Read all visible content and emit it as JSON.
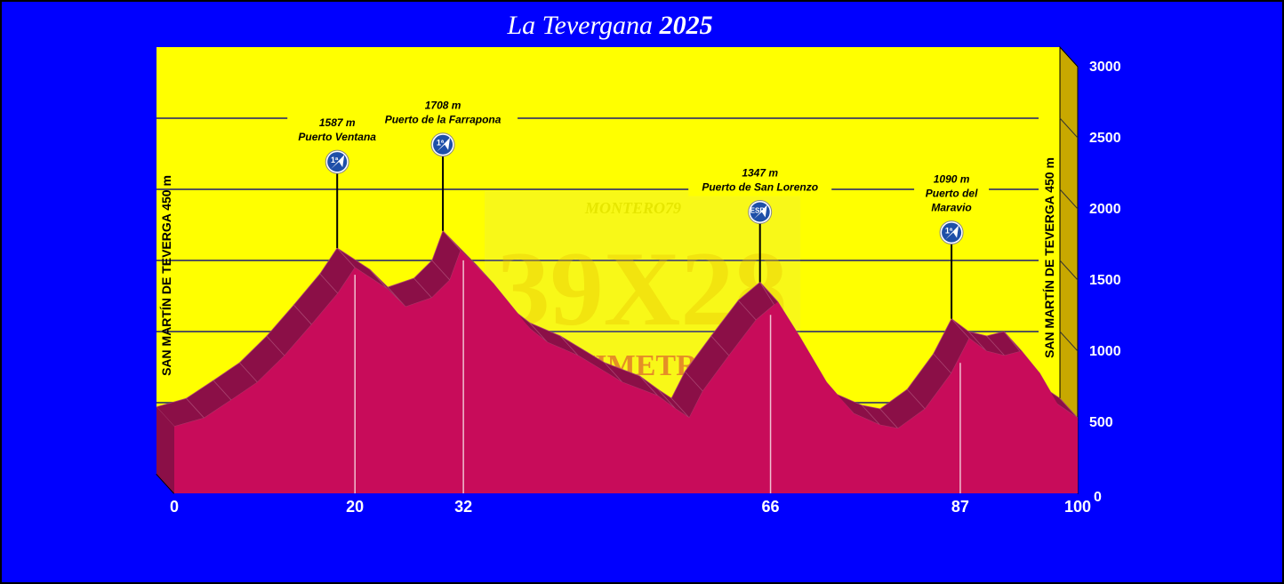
{
  "chart_data": {
    "type": "area",
    "title": "La Tevergana",
    "title_year": "2025",
    "xlabel": "",
    "ylabel": "",
    "xlim": [
      0,
      100
    ],
    "ylim": [
      0,
      3000
    ],
    "y_ticks": [
      0,
      500,
      1000,
      1500,
      2000,
      2500,
      3000
    ],
    "x_ticks": [
      0,
      20,
      32,
      66,
      87,
      100
    ],
    "grid": true,
    "start_label": "SAN MARTÍN DE TEVERGA 450 m",
    "finish_label": "SAN MARTÍN DE TEVERGA 450 m",
    "profile": [
      [
        0,
        470
      ],
      [
        3.3,
        530
      ],
      [
        6.3,
        656
      ],
      [
        9.2,
        781
      ],
      [
        12.2,
        968
      ],
      [
        15.2,
        1187
      ],
      [
        18.1,
        1406
      ],
      [
        20,
        1587
      ],
      [
        23.6,
        1437
      ],
      [
        25.6,
        1312
      ],
      [
        28.5,
        1375
      ],
      [
        30.5,
        1500
      ],
      [
        31.7,
        1708
      ],
      [
        35.4,
        1469
      ],
      [
        39.4,
        1156
      ],
      [
        41.3,
        1062
      ],
      [
        44.7,
        969
      ],
      [
        49.6,
        781
      ],
      [
        53.5,
        687
      ],
      [
        55.5,
        594
      ],
      [
        57,
        531
      ],
      [
        58.5,
        719
      ],
      [
        61.4,
        969
      ],
      [
        64.4,
        1219
      ],
      [
        66.8,
        1347
      ],
      [
        69.3,
        1094
      ],
      [
        72.2,
        781
      ],
      [
        75.2,
        562
      ],
      [
        78.1,
        481
      ],
      [
        80.1,
        456
      ],
      [
        83.1,
        594
      ],
      [
        86,
        844
      ],
      [
        88,
        1090
      ],
      [
        89.9,
        1000
      ],
      [
        91.9,
        969
      ],
      [
        93.8,
        1000
      ],
      [
        95.8,
        844
      ],
      [
        97.8,
        625
      ],
      [
        100,
        530
      ]
    ],
    "climbs": [
      {
        "km": 20,
        "elevation_label": "1587 m",
        "name": [
          "Puerto Ventana"
        ],
        "category": "1ª"
      },
      {
        "km": 31.7,
        "elevation_label": "1708 m",
        "name": [
          "Puerto de la Farrapona"
        ],
        "category": "1ª"
      },
      {
        "km": 66.8,
        "elevation_label": "1347 m",
        "name": [
          "Puerto de San Lorenzo"
        ],
        "category": "ESP"
      },
      {
        "km": 88,
        "elevation_label": "1090 m",
        "name": [
          "Puerto del",
          "Maravio"
        ],
        "category": "1ª"
      }
    ],
    "watermark": {
      "top": "MONTERO79",
      "main": "39X28",
      "bottom": "ALTIMETRIAS"
    },
    "colors": {
      "background": "#0000FF",
      "wall": "#FFFF00",
      "side_wall": "#C8A800",
      "profile_front": "#C80C5A",
      "profile_top": "#8B0F47",
      "badge": "#1E4FA8"
    }
  }
}
